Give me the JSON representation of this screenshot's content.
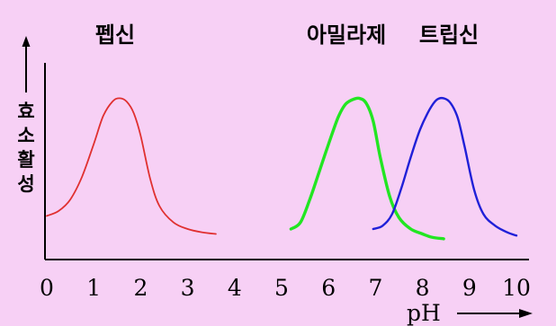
{
  "chart_data": {
    "type": "line",
    "title": "",
    "xlabel": "pH",
    "ylabel": "효소활성",
    "xlim": [
      0,
      10
    ],
    "x_ticks": [
      "0",
      "1",
      "2",
      "3",
      "4",
      "5",
      "6",
      "7",
      "8",
      "9",
      "10"
    ],
    "grid": false,
    "legend": "none",
    "series": [
      {
        "name": "펩신",
        "color": "#e03030",
        "x": [
          0.0,
          0.25,
          0.5,
          0.75,
          1.0,
          1.2,
          1.4,
          1.55,
          1.7,
          1.85,
          2.0,
          2.2,
          2.4,
          2.7,
          3.0,
          3.3,
          3.6
        ],
        "y": [
          0.28,
          0.31,
          0.38,
          0.52,
          0.72,
          0.89,
          0.98,
          1.0,
          0.98,
          0.91,
          0.77,
          0.51,
          0.34,
          0.24,
          0.2,
          0.18,
          0.17
        ]
      },
      {
        "name": "아밀라제",
        "color": "#22e622",
        "x": [
          5.2,
          5.4,
          5.6,
          5.8,
          6.0,
          6.2,
          6.35,
          6.5,
          6.65,
          6.8,
          6.95,
          7.1,
          7.3,
          7.5,
          7.75,
          8.0,
          8.2,
          8.45
        ],
        "y": [
          0.2,
          0.24,
          0.38,
          0.55,
          0.72,
          0.88,
          0.96,
          0.99,
          1.0,
          0.97,
          0.86,
          0.64,
          0.4,
          0.27,
          0.2,
          0.17,
          0.15,
          0.14
        ]
      },
      {
        "name": "트립신",
        "color": "#2020d8",
        "x": [
          6.95,
          7.15,
          7.35,
          7.55,
          7.75,
          7.95,
          8.15,
          8.3,
          8.45,
          8.6,
          8.75,
          8.9,
          9.1,
          9.3,
          9.55,
          9.8,
          10.0
        ],
        "y": [
          0.2,
          0.22,
          0.29,
          0.45,
          0.64,
          0.81,
          0.93,
          0.99,
          1.0,
          0.97,
          0.88,
          0.7,
          0.44,
          0.29,
          0.22,
          0.18,
          0.16
        ]
      }
    ]
  }
}
